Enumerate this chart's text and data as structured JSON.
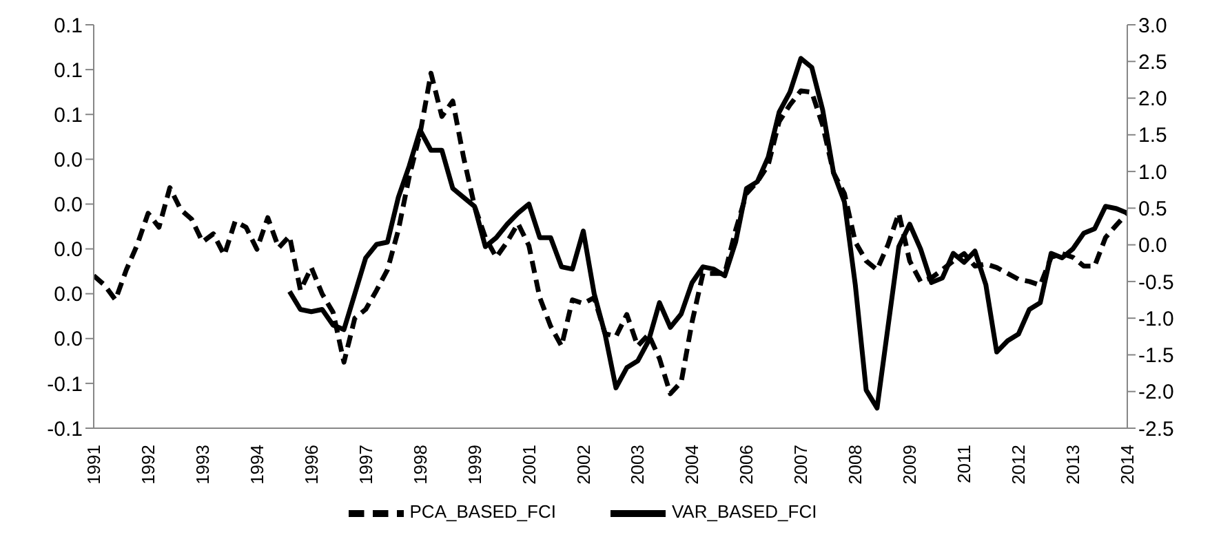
{
  "chart_data": {
    "type": "line",
    "categories": [
      "1991",
      null,
      null,
      null,
      null,
      "1992",
      null,
      null,
      null,
      null,
      "1993",
      null,
      null,
      null,
      null,
      "1994",
      null,
      null,
      null,
      null,
      "1996",
      null,
      null,
      null,
      null,
      "1997",
      null,
      null,
      null,
      null,
      "1998",
      null,
      null,
      null,
      null,
      "1999",
      null,
      null,
      null,
      null,
      "2001",
      null,
      null,
      null,
      null,
      "2002",
      null,
      null,
      null,
      null,
      "2003",
      null,
      null,
      null,
      null,
      "2004",
      null,
      null,
      null,
      null,
      "2006",
      null,
      null,
      null,
      null,
      "2007",
      null,
      null,
      null,
      null,
      "2008",
      null,
      null,
      null,
      null,
      "2009",
      null,
      null,
      null,
      null,
      "2011",
      null,
      null,
      null,
      null,
      "2012",
      null,
      null,
      null,
      null,
      "2013",
      null,
      null,
      null,
      null,
      "2014"
    ],
    "series": [
      {
        "name": "VAR_BASED_FCI",
        "color": "#000000",
        "line_style": "solid",
        "values": [
          null,
          null,
          null,
          null,
          null,
          null,
          null,
          null,
          null,
          null,
          null,
          null,
          null,
          null,
          null,
          null,
          null,
          null,
          -0.019,
          -0.027,
          -0.028,
          -0.027,
          -0.034,
          -0.036,
          -0.02,
          -0.004,
          0.002,
          0.003,
          0.023,
          0.037,
          0.053,
          0.044,
          0.044,
          0.027,
          0.023,
          0.019,
          0.001,
          0.005,
          0.011,
          0.016,
          0.02,
          0.005,
          0.005,
          -0.008,
          -0.009,
          0.008,
          -0.02,
          -0.038,
          -0.062,
          -0.053,
          -0.05,
          -0.041,
          -0.024,
          -0.035,
          -0.029,
          -0.015,
          -0.008,
          -0.009,
          -0.012,
          0.003,
          0.027,
          0.03,
          0.041,
          0.061,
          0.07,
          0.085,
          0.081,
          0.062,
          0.034,
          0.021,
          -0.016,
          -0.063,
          -0.071,
          -0.035,
          0.001,
          0.011,
          0.0,
          -0.015,
          -0.013,
          -0.002,
          -0.006,
          -0.001,
          -0.016,
          -0.046,
          -0.041,
          -0.038,
          -0.027,
          -0.024,
          -0.002,
          -0.004,
          0.0,
          0.007,
          0.009,
          0.019,
          0.018,
          0.016
        ]
      },
      {
        "name": "PCA_BASED_FCI",
        "color": "#000000",
        "line_style": "dashed",
        "axis": "y2",
        "values": [
          -0.42,
          -0.55,
          -0.75,
          -0.34,
          0.0,
          0.43,
          0.24,
          0.78,
          0.48,
          0.35,
          0.04,
          0.15,
          -0.14,
          0.32,
          0.24,
          -0.06,
          0.37,
          -0.04,
          0.12,
          -0.62,
          -0.31,
          -0.67,
          -0.92,
          -1.6,
          -1.0,
          -0.88,
          -0.62,
          -0.34,
          0.2,
          0.93,
          1.52,
          2.34,
          1.75,
          1.96,
          1.19,
          0.53,
          0.1,
          -0.17,
          0.04,
          0.29,
          -0.01,
          -0.72,
          -1.11,
          -1.38,
          -0.75,
          -0.8,
          -0.72,
          -1.21,
          -1.25,
          -0.95,
          -1.38,
          -1.22,
          -1.55,
          -2.03,
          -1.87,
          -1.05,
          -0.39,
          -0.39,
          -0.39,
          0.2,
          0.7,
          0.86,
          1.09,
          1.68,
          1.91,
          2.1,
          2.08,
          1.63,
          0.98,
          0.7,
          0.04,
          -0.22,
          -0.34,
          0.0,
          0.43,
          -0.22,
          -0.5,
          -0.45,
          -0.34,
          -0.22,
          -0.12,
          -0.29,
          -0.26,
          -0.31,
          -0.39,
          -0.47,
          -0.5,
          -0.55,
          -0.17,
          -0.12,
          -0.17,
          -0.29,
          -0.29,
          0.1,
          0.27,
          0.43
        ]
      }
    ],
    "ylim": [
      -0.08,
      0.1
    ],
    "yticks": [
      {
        "value": -0.08,
        "label": "-0.1"
      },
      {
        "value": -0.06,
        "label": "-0.1"
      },
      {
        "value": -0.04,
        "label": "0.0"
      },
      {
        "value": -0.02,
        "label": "0.0"
      },
      {
        "value": 0,
        "label": "0.0"
      },
      {
        "value": 0.02,
        "label": "0.0"
      },
      {
        "value": 0.04,
        "label": "0.0"
      },
      {
        "value": 0.06,
        "label": "0.1"
      },
      {
        "value": 0.08,
        "label": "0.1"
      },
      {
        "value": 0.1,
        "label": "0.1"
      }
    ],
    "y2lim": [
      -2.5,
      3.0
    ],
    "y2ticks": [
      {
        "value": -2.5,
        "label": "-2.5"
      },
      {
        "value": -2.0,
        "label": "-2.0"
      },
      {
        "value": -1.5,
        "label": "-1.5"
      },
      {
        "value": -1.0,
        "label": "-1.0"
      },
      {
        "value": -0.5,
        "label": "-0.5"
      },
      {
        "value": 0,
        "label": "0.0"
      },
      {
        "value": 0.5,
        "label": "0.5"
      },
      {
        "value": 1.0,
        "label": "1.0"
      },
      {
        "value": 1.5,
        "label": "1.5"
      },
      {
        "value": 2.0,
        "label": "2.0"
      },
      {
        "value": 2.5,
        "label": "2.5"
      },
      {
        "value": 3.0,
        "label": "3.0"
      }
    ],
    "grid": false,
    "legend": "bottom",
    "marker": "none"
  }
}
